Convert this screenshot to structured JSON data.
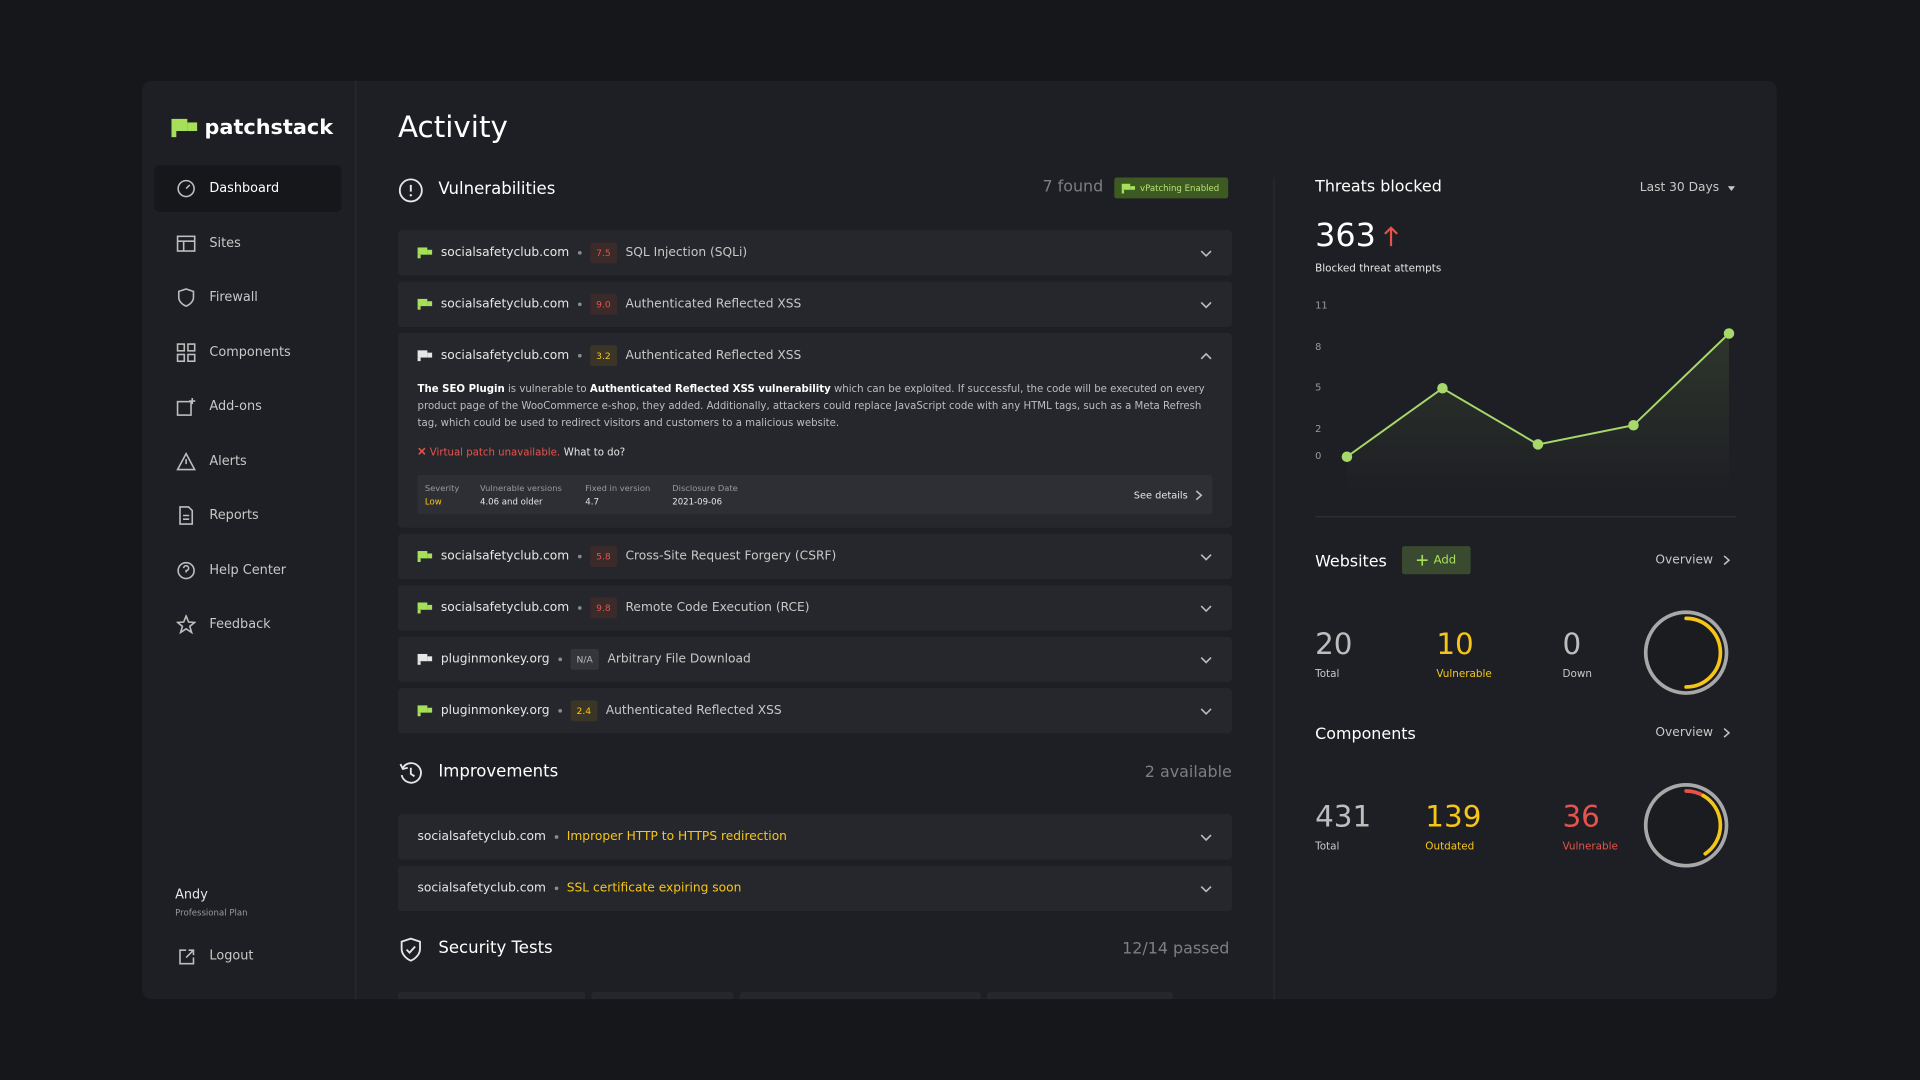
{
  "brand": "patchstack",
  "nav": [
    "Dashboard",
    "Sites",
    "Firewall",
    "Components",
    "Add-ons",
    "Alerts",
    "Reports",
    "Help Center",
    "Feedback"
  ],
  "user": {
    "name": "Andy",
    "plan": "Professional Plan"
  },
  "logout": "Logout",
  "page_title": "Activity",
  "vulnerabilities": {
    "title": "Vulnerabilities",
    "count": "7 found",
    "badge": "vPatching Enabled",
    "items": [
      {
        "site": "socialsafetyclub.com",
        "score": "7.5",
        "name": "SQL Injection (SQLi)",
        "icon_color": "#a6e05a"
      },
      {
        "site": "socialsafetyclub.com",
        "score": "9.0",
        "name": "Authenticated Reflected XSS",
        "icon_color": "#a6e05a"
      },
      {
        "site": "socialsafetyclub.com",
        "score": "3.2",
        "name": "Authenticated Reflected XSS",
        "icon_color": "#e6e6e6",
        "details": {
          "description": [
            {
              "text": "The SEO Plugin",
              "bold": true
            },
            {
              "text": " is vulnerable to ",
              "bold": false
            },
            {
              "text": "Authenticated Reflected XSS vulnerability",
              "bold": true
            },
            {
              "text": " which can be exploited. If successful, the code will be executed on every product page of the WooCommerce e-shop, they added. Additionally, attackers could replace JavaScript code with any HTML tags, such as a Meta Refresh tag, which could be used to redirect visitors and customers to a malicious website.",
              "bold": false
            }
          ],
          "warning": "Virtual patch unavailable.",
          "action": "What to do?",
          "fields": [
            {
              "label": "Severity",
              "value": "Low",
              "color": "#f5c518"
            },
            {
              "label": "Vulnerable versions",
              "value": "4.06 and older"
            },
            {
              "label": "Fixed in version",
              "value": "4.7"
            },
            {
              "label": "Disclosure Date",
              "value": "2021-09-06"
            }
          ],
          "link": "See details"
        }
      },
      {
        "site": "socialsafetyclub.com",
        "score": "5.8",
        "name": "Cross-Site Request Forgery (CSRF)",
        "icon_color": "#a6e05a"
      },
      {
        "site": "socialsafetyclub.com",
        "score": "9.8",
        "name": "Remote Code Execution (RCE)",
        "icon_color": "#a6e05a"
      },
      {
        "site": "pluginmonkey.org",
        "score": "N/A",
        "name": "Arbitrary File Download",
        "icon_color": "#e6e6e6"
      },
      {
        "site": "pluginmonkey.org",
        "score": "2.4",
        "name": "Authenticated Reflected XSS",
        "icon_color": "#a6e05a"
      }
    ]
  },
  "improvements": {
    "title": "Improvements",
    "count": "2 available",
    "items": [
      {
        "site": "socialsafetyclub.com",
        "issue": "Improper HTTP to HTTPS redirection"
      },
      {
        "site": "socialsafetyclub.com",
        "issue": "SSL certificate expiring soon"
      }
    ]
  },
  "security_tests": {
    "title": "Security Tests",
    "count": "12/14 passed"
  },
  "threats": {
    "title": "Threats blocked",
    "period": "Last 30 Days",
    "total": 363,
    "subtitle": "Blocked threat attempts",
    "chart_data": {
      "type": "line",
      "values": [
        0,
        5,
        0.9,
        2.3,
        9
      ],
      "ylim": [
        0,
        11
      ],
      "yticks": [
        0,
        2,
        5,
        8,
        11
      ],
      "color": "#a6d86a"
    }
  },
  "websites": {
    "title": "Websites",
    "add": "Add",
    "overview": "Overview",
    "stats": [
      {
        "value": 20,
        "label": "Total",
        "color": "#bdbdbd"
      },
      {
        "value": 10,
        "label": "Vulnerable",
        "color": "#f5c518"
      },
      {
        "value": 0,
        "label": "Down",
        "color": "#bdbdbd"
      }
    ]
  },
  "components": {
    "title": "Components",
    "overview": "Overview",
    "stats": [
      {
        "value": 431,
        "label": "Total",
        "color": "#bdbdbd"
      },
      {
        "value": 139,
        "label": "Outdated",
        "color": "#f5c518"
      },
      {
        "value": 36,
        "label": "Vulnerable",
        "color": "#e5534b"
      }
    ]
  }
}
